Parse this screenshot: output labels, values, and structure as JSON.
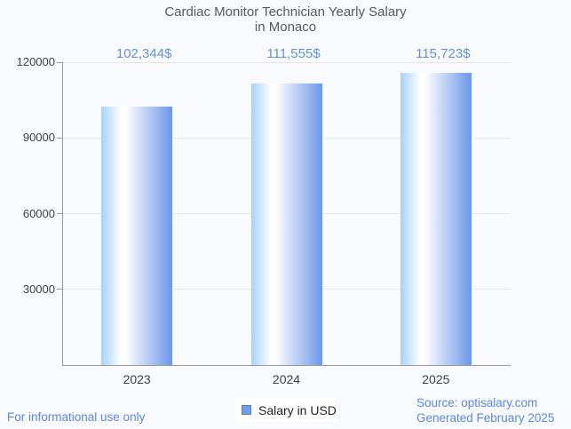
{
  "title": {
    "line1": "Cardiac Monitor Technician Yearly Salary",
    "line2": "in Monaco"
  },
  "chart_data": {
    "type": "bar",
    "categories": [
      "2023",
      "2024",
      "2025"
    ],
    "series": [
      {
        "name": "Salary in USD",
        "values": [
          102344,
          111555,
          115723
        ]
      }
    ],
    "annotations": [
      "102,344$",
      "111,555$",
      "115,723$"
    ],
    "title": "Cardiac Monitor Technician Yearly Salary in Monaco",
    "xlabel": "",
    "ylabel": "",
    "ylim": [
      0,
      120000
    ],
    "yticks": [
      30000,
      60000,
      90000,
      120000
    ],
    "grid": true,
    "legend_position": "bottom",
    "colors": {
      "bar_gradient_left": "#a6d2fb",
      "bar_gradient_mid": "#ffffff",
      "bar_gradient_right": "#6b96ea",
      "annotation_text": "#6191e5",
      "axis_line": "#9a9a9a",
      "gridline": "#e3e6ea",
      "tick_text": "#3f3f3f",
      "background": "#f8fafd"
    }
  },
  "legend": {
    "label": "Salary in USD",
    "swatch_color": "#6d9eeb"
  },
  "footer": {
    "disclaimer": "For informational use only",
    "source": "Source: optisalary.com",
    "generated": "Generated February 2025"
  }
}
